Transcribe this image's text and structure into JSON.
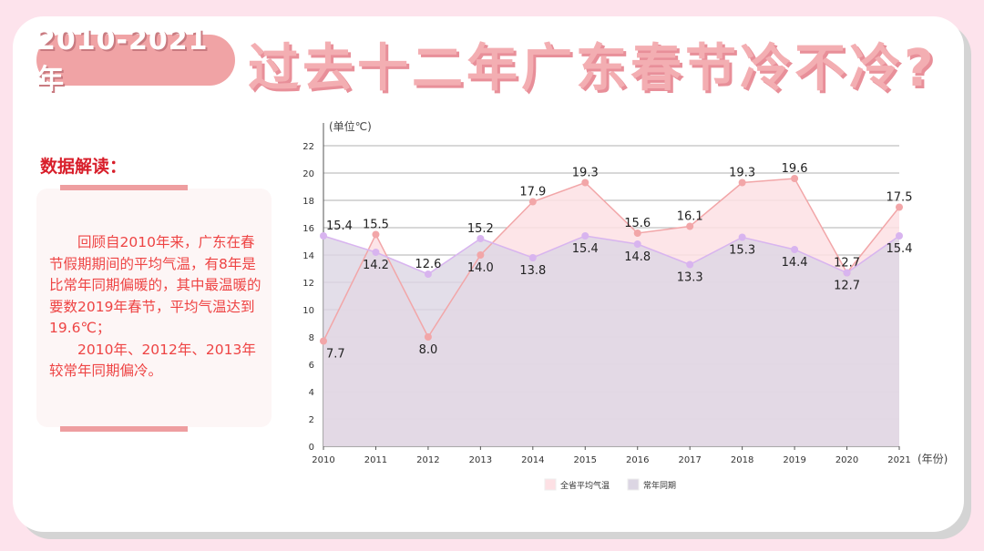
{
  "header": {
    "badge": "2010-2021年",
    "title": "过去十二年广东春节冷不冷?"
  },
  "sidebar": {
    "heading": "数据解读：",
    "paragraphs": [
      "回顾自2010年来，广东在春节假期期间的平均气温，有8年是比常年同期偏暖的，其中最温暖的要数2019年春节，平均气温达到19.6℃；",
      "2010年、2012年、2013年较常年同期偏冷。"
    ]
  },
  "chart_data": {
    "type": "area",
    "ylabel": "(单位℃)",
    "xlabel": "(年份)",
    "categories": [
      "2010",
      "2011",
      "2012",
      "2013",
      "2014",
      "2015",
      "2016",
      "2017",
      "2018",
      "2019",
      "2020",
      "2021"
    ],
    "ylim": [
      0,
      22
    ],
    "yticks": [
      0,
      2,
      4,
      6,
      8,
      10,
      12,
      14,
      16,
      18,
      20,
      22
    ],
    "grid": true,
    "legend": "bottom",
    "series": [
      {
        "name": "全省平均气温",
        "color": "#f2a6a8",
        "fill": "#fde0e4",
        "values": [
          7.7,
          15.5,
          8.0,
          14.0,
          17.9,
          19.3,
          15.6,
          16.1,
          19.3,
          19.6,
          12.7,
          17.5
        ]
      },
      {
        "name": "常年同期",
        "color": "#d8b4ef",
        "fill": "#dcd6e3",
        "values": [
          15.4,
          14.2,
          12.6,
          15.2,
          13.8,
          15.4,
          14.8,
          13.3,
          15.3,
          14.4,
          12.7,
          15.4
        ]
      }
    ]
  }
}
